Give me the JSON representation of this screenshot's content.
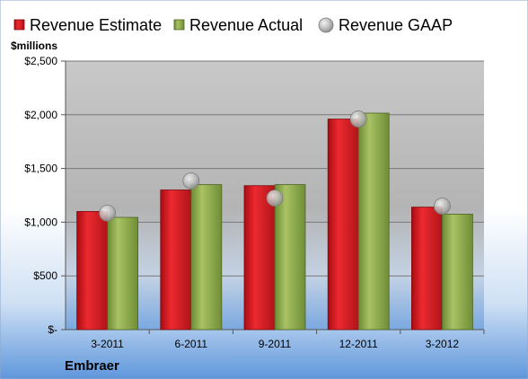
{
  "chart_data": {
    "type": "bar",
    "company": "Embraer",
    "unit_label": "$millions",
    "categories": [
      "3-2011",
      "6-2011",
      "9-2011",
      "12-2011",
      "3-2012"
    ],
    "series": [
      {
        "name": "Revenue Estimate",
        "kind": "bar",
        "color": "#d0121b",
        "values": [
          1100,
          1300,
          1340,
          1960,
          1140
        ]
      },
      {
        "name": "Revenue Actual",
        "kind": "bar",
        "color": "#8ea84a",
        "values": [
          1045,
          1350,
          1350,
          2015,
          1075
        ]
      },
      {
        "name": "Revenue GAAP",
        "kind": "marker",
        "color": "#b8b8b8",
        "values": [
          1085,
          1385,
          1225,
          1960,
          1150
        ]
      }
    ],
    "ylim": [
      0,
      2500
    ],
    "yticks": [
      0,
      500,
      1000,
      1500,
      2000,
      2500
    ],
    "ytick_labels": [
      "$-",
      "$500",
      "$1,000",
      "$1,500",
      "$2,000",
      "$2,500"
    ],
    "grid": true,
    "legend_position": "top"
  }
}
